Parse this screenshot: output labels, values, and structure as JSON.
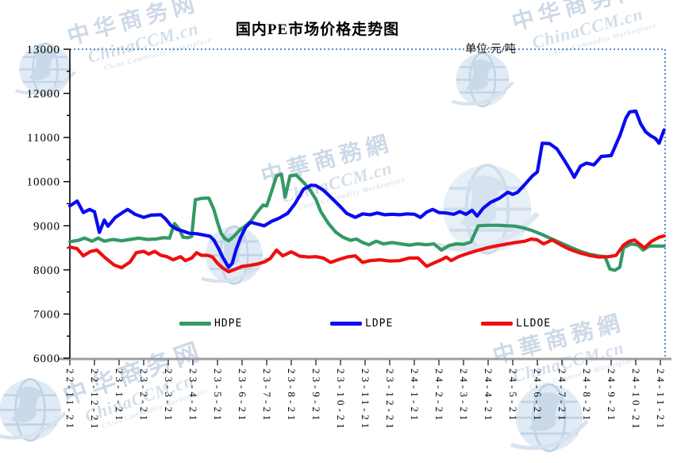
{
  "title": "国内PE市场价格走势图",
  "unit_label": "单位:元/吨",
  "watermark": {
    "cn_simplified": "中华商务网",
    "cn_traditional": "中華商務網",
    "brand": "ChinaCCM.cn",
    "tagline": "China Commodity Marketplace"
  },
  "colors": {
    "hdpe": "#339966",
    "ldpe": "#0a0af0",
    "lldoe": "#ee0f0f",
    "dotted_border": "#5b87c5",
    "bottom_axis": "#9e9e9e",
    "left_axis": "#000000"
  },
  "chart_data": {
    "type": "line",
    "title": "国内PE市场价格走势图",
    "unit": "单位:元/吨",
    "ylabel": "",
    "xlabel": "",
    "ylim": [
      6000,
      13000
    ],
    "y_tick_interval": 1000,
    "y_minor_tick_interval": 500,
    "y_tick_labels": [
      "6000",
      "7000",
      "8000",
      "9000",
      "10000",
      "11000",
      "12000",
      "13000"
    ],
    "grid": false,
    "legend_position": "bottom-inside",
    "x_tick_labels": [
      "22-11-21",
      "22-12-21",
      "23-1-21",
      "23-2-21",
      "23-3-21",
      "23-4-21",
      "23-5-21",
      "23-6-21",
      "23-7-21",
      "23-8-21",
      "23-9-21",
      "23-10-21",
      "23-11-21",
      "23-12-21",
      "24-1-21",
      "24-2-21",
      "24-3-21",
      "24-4-21",
      "24-5-21",
      "24-6-21",
      "24-7-21",
      "24-8-21",
      "24-9-21",
      "24-10-21",
      "24-11-21"
    ],
    "x_unit": "month-index (0 = 22-11-21, weekly data in between)",
    "series": [
      {
        "name": "HDPE",
        "color": "#339966",
        "points": [
          [
            0,
            8640
          ],
          [
            0.35,
            8670
          ],
          [
            0.6,
            8720
          ],
          [
            0.9,
            8650
          ],
          [
            1.15,
            8720
          ],
          [
            1.4,
            8650
          ],
          [
            1.75,
            8690
          ],
          [
            2.1,
            8660
          ],
          [
            2.45,
            8690
          ],
          [
            2.8,
            8720
          ],
          [
            3.15,
            8690
          ],
          [
            3.5,
            8700
          ],
          [
            3.8,
            8730
          ],
          [
            4.05,
            8720
          ],
          [
            4.25,
            9050
          ],
          [
            4.45,
            8920
          ],
          [
            4.6,
            8740
          ],
          [
            4.8,
            8730
          ],
          [
            4.95,
            8760
          ],
          [
            5.1,
            9590
          ],
          [
            5.35,
            9620
          ],
          [
            5.65,
            9630
          ],
          [
            5.85,
            9370
          ],
          [
            6.0,
            9080
          ],
          [
            6.15,
            8830
          ],
          [
            6.3,
            8710
          ],
          [
            6.45,
            8660
          ],
          [
            6.65,
            8750
          ],
          [
            6.9,
            8900
          ],
          [
            7.1,
            8980
          ],
          [
            7.35,
            9100
          ],
          [
            7.6,
            9300
          ],
          [
            7.85,
            9470
          ],
          [
            8.0,
            9450
          ],
          [
            8.2,
            9780
          ],
          [
            8.4,
            10130
          ],
          [
            8.6,
            10170
          ],
          [
            8.75,
            9650
          ],
          [
            8.95,
            10130
          ],
          [
            9.2,
            10150
          ],
          [
            9.5,
            9980
          ],
          [
            9.75,
            9820
          ],
          [
            10.0,
            9600
          ],
          [
            10.2,
            9320
          ],
          [
            10.5,
            9060
          ],
          [
            10.8,
            8860
          ],
          [
            11.1,
            8740
          ],
          [
            11.4,
            8670
          ],
          [
            11.65,
            8700
          ],
          [
            11.9,
            8620
          ],
          [
            12.15,
            8570
          ],
          [
            12.45,
            8650
          ],
          [
            12.75,
            8590
          ],
          [
            13.1,
            8620
          ],
          [
            13.45,
            8590
          ],
          [
            13.8,
            8560
          ],
          [
            14.15,
            8590
          ],
          [
            14.5,
            8570
          ],
          [
            14.8,
            8590
          ],
          [
            15.1,
            8450
          ],
          [
            15.4,
            8550
          ],
          [
            15.7,
            8590
          ],
          [
            16.0,
            8580
          ],
          [
            16.3,
            8630
          ],
          [
            16.6,
            9000
          ],
          [
            17.0,
            9010
          ],
          [
            17.4,
            9010
          ],
          [
            17.8,
            9000
          ],
          [
            18.1,
            8990
          ],
          [
            18.45,
            8950
          ],
          [
            18.8,
            8890
          ],
          [
            19.2,
            8800
          ],
          [
            19.6,
            8700
          ],
          [
            20.0,
            8600
          ],
          [
            20.4,
            8500
          ],
          [
            20.8,
            8410
          ],
          [
            21.1,
            8360
          ],
          [
            21.45,
            8320
          ],
          [
            21.75,
            8300
          ],
          [
            21.95,
            8020
          ],
          [
            22.15,
            7990
          ],
          [
            22.35,
            8060
          ],
          [
            22.5,
            8500
          ],
          [
            22.8,
            8590
          ],
          [
            23.1,
            8560
          ],
          [
            23.3,
            8450
          ],
          [
            23.55,
            8540
          ],
          [
            23.85,
            8540
          ],
          [
            24.15,
            8540
          ]
        ]
      },
      {
        "name": "LDPE",
        "color": "#0a0af0",
        "points": [
          [
            0,
            9450
          ],
          [
            0.3,
            9560
          ],
          [
            0.55,
            9300
          ],
          [
            0.8,
            9370
          ],
          [
            1.0,
            9320
          ],
          [
            1.2,
            8850
          ],
          [
            1.4,
            9130
          ],
          [
            1.55,
            8990
          ],
          [
            1.85,
            9190
          ],
          [
            2.2,
            9320
          ],
          [
            2.35,
            9370
          ],
          [
            2.65,
            9260
          ],
          [
            3.0,
            9190
          ],
          [
            3.3,
            9240
          ],
          [
            3.7,
            9250
          ],
          [
            3.9,
            9150
          ],
          [
            4.1,
            9010
          ],
          [
            4.35,
            8920
          ],
          [
            4.6,
            8880
          ],
          [
            4.85,
            8830
          ],
          [
            5.15,
            8820
          ],
          [
            5.45,
            8790
          ],
          [
            5.7,
            8760
          ],
          [
            5.85,
            8680
          ],
          [
            6.05,
            8480
          ],
          [
            6.2,
            8300
          ],
          [
            6.45,
            8060
          ],
          [
            6.6,
            8150
          ],
          [
            6.75,
            8450
          ],
          [
            6.95,
            8750
          ],
          [
            7.15,
            8970
          ],
          [
            7.35,
            9080
          ],
          [
            7.55,
            9050
          ],
          [
            7.9,
            9000
          ],
          [
            8.2,
            9100
          ],
          [
            8.5,
            9170
          ],
          [
            8.85,
            9280
          ],
          [
            9.15,
            9500
          ],
          [
            9.5,
            9830
          ],
          [
            9.8,
            9920
          ],
          [
            10.0,
            9910
          ],
          [
            10.3,
            9810
          ],
          [
            10.6,
            9650
          ],
          [
            10.95,
            9460
          ],
          [
            11.25,
            9280
          ],
          [
            11.6,
            9190
          ],
          [
            11.9,
            9270
          ],
          [
            12.2,
            9250
          ],
          [
            12.5,
            9290
          ],
          [
            12.8,
            9250
          ],
          [
            13.1,
            9260
          ],
          [
            13.4,
            9250
          ],
          [
            13.7,
            9270
          ],
          [
            14.0,
            9260
          ],
          [
            14.25,
            9190
          ],
          [
            14.5,
            9310
          ],
          [
            14.75,
            9370
          ],
          [
            15.0,
            9300
          ],
          [
            15.3,
            9290
          ],
          [
            15.6,
            9260
          ],
          [
            15.85,
            9320
          ],
          [
            16.1,
            9260
          ],
          [
            16.35,
            9350
          ],
          [
            16.55,
            9220
          ],
          [
            16.8,
            9400
          ],
          [
            17.1,
            9530
          ],
          [
            17.45,
            9620
          ],
          [
            17.8,
            9760
          ],
          [
            18.0,
            9710
          ],
          [
            18.2,
            9760
          ],
          [
            18.5,
            9940
          ],
          [
            18.8,
            10130
          ],
          [
            19.0,
            10220
          ],
          [
            19.2,
            10870
          ],
          [
            19.5,
            10860
          ],
          [
            19.8,
            10740
          ],
          [
            20.1,
            10480
          ],
          [
            20.35,
            10250
          ],
          [
            20.5,
            10100
          ],
          [
            20.75,
            10350
          ],
          [
            21.0,
            10420
          ],
          [
            21.3,
            10380
          ],
          [
            21.6,
            10570
          ],
          [
            22.0,
            10590
          ],
          [
            22.35,
            11040
          ],
          [
            22.6,
            11440
          ],
          [
            22.75,
            11580
          ],
          [
            23.0,
            11600
          ],
          [
            23.2,
            11310
          ],
          [
            23.4,
            11130
          ],
          [
            23.6,
            11040
          ],
          [
            23.8,
            10980
          ],
          [
            23.95,
            10870
          ],
          [
            24.15,
            11170
          ]
        ]
      },
      {
        "name": "LLDOE",
        "color": "#ee0f0f",
        "points": [
          [
            0,
            8520
          ],
          [
            0.3,
            8480
          ],
          [
            0.55,
            8320
          ],
          [
            0.85,
            8420
          ],
          [
            1.1,
            8450
          ],
          [
            1.45,
            8270
          ],
          [
            1.8,
            8110
          ],
          [
            2.1,
            8050
          ],
          [
            2.45,
            8180
          ],
          [
            2.7,
            8390
          ],
          [
            3.0,
            8420
          ],
          [
            3.2,
            8360
          ],
          [
            3.45,
            8420
          ],
          [
            3.7,
            8330
          ],
          [
            3.95,
            8300
          ],
          [
            4.2,
            8230
          ],
          [
            4.5,
            8300
          ],
          [
            4.7,
            8210
          ],
          [
            4.95,
            8270
          ],
          [
            5.15,
            8390
          ],
          [
            5.35,
            8330
          ],
          [
            5.6,
            8330
          ],
          [
            5.8,
            8290
          ],
          [
            6.0,
            8150
          ],
          [
            6.2,
            8050
          ],
          [
            6.45,
            7960
          ],
          [
            6.7,
            8010
          ],
          [
            7.0,
            8080
          ],
          [
            7.3,
            8100
          ],
          [
            7.6,
            8130
          ],
          [
            7.9,
            8180
          ],
          [
            8.15,
            8260
          ],
          [
            8.4,
            8450
          ],
          [
            8.65,
            8320
          ],
          [
            9.0,
            8410
          ],
          [
            9.35,
            8310
          ],
          [
            9.7,
            8290
          ],
          [
            10.0,
            8300
          ],
          [
            10.3,
            8270
          ],
          [
            10.6,
            8170
          ],
          [
            10.9,
            8230
          ],
          [
            11.25,
            8290
          ],
          [
            11.6,
            8320
          ],
          [
            11.9,
            8170
          ],
          [
            12.2,
            8210
          ],
          [
            12.6,
            8230
          ],
          [
            13.0,
            8200
          ],
          [
            13.4,
            8210
          ],
          [
            13.8,
            8270
          ],
          [
            14.15,
            8270
          ],
          [
            14.5,
            8080
          ],
          [
            14.85,
            8170
          ],
          [
            15.1,
            8230
          ],
          [
            15.3,
            8290
          ],
          [
            15.5,
            8210
          ],
          [
            15.8,
            8300
          ],
          [
            16.1,
            8360
          ],
          [
            16.5,
            8430
          ],
          [
            16.9,
            8490
          ],
          [
            17.3,
            8540
          ],
          [
            17.7,
            8580
          ],
          [
            18.1,
            8620
          ],
          [
            18.5,
            8650
          ],
          [
            18.75,
            8700
          ],
          [
            19.0,
            8680
          ],
          [
            19.25,
            8590
          ],
          [
            19.6,
            8680
          ],
          [
            19.95,
            8570
          ],
          [
            20.3,
            8470
          ],
          [
            20.7,
            8390
          ],
          [
            21.1,
            8330
          ],
          [
            21.5,
            8290
          ],
          [
            21.9,
            8300
          ],
          [
            22.2,
            8330
          ],
          [
            22.5,
            8560
          ],
          [
            22.75,
            8650
          ],
          [
            22.95,
            8680
          ],
          [
            23.15,
            8590
          ],
          [
            23.35,
            8500
          ],
          [
            23.65,
            8650
          ],
          [
            23.95,
            8740
          ],
          [
            24.15,
            8770
          ]
        ]
      }
    ]
  }
}
